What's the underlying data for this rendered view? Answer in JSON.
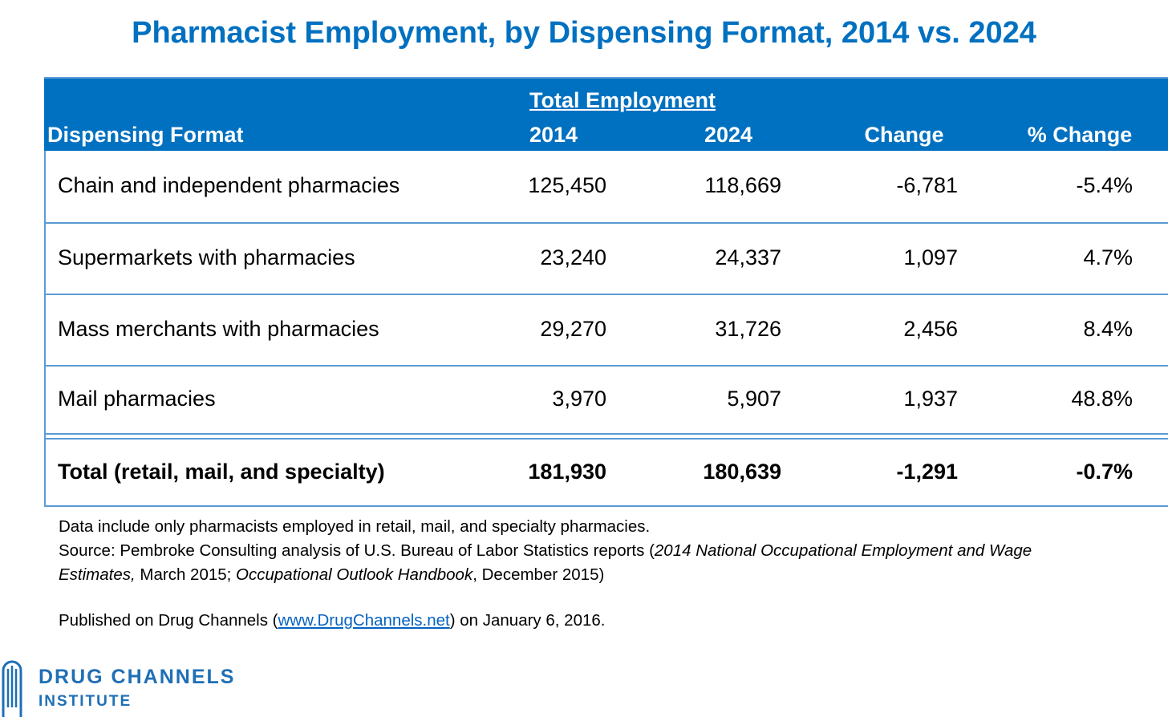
{
  "header": {
    "title": "Pharmacist Employment, by Dispensing Format, 2014 vs. 2024"
  },
  "table": {
    "group_header": "Total Employment",
    "columns": [
      "Dispensing Format",
      "2014",
      "2024",
      "Change",
      "% Change"
    ],
    "rows": [
      [
        "Chain and independent pharmacies",
        "125,450",
        "118,669",
        "-6,781",
        "-5.4%"
      ],
      [
        "Supermarkets with pharmacies",
        "23,240",
        "24,337",
        "1,097",
        "4.7%"
      ],
      [
        "Mass merchants with pharmacies",
        "29,270",
        "31,726",
        "2,456",
        "8.4%"
      ],
      [
        "Mail pharmacies",
        "3,970",
        "5,907",
        "1,937",
        "48.8%"
      ]
    ],
    "total": [
      "Total (retail, mail, and specialty)",
      "181,930",
      "180,639",
      "-1,291",
      "-0.7%"
    ]
  },
  "notes": {
    "line1": "Data include only pharmacists employed in retail, mail, and specialty pharmacies.",
    "source": [
      "Source: Pembroke Consulting analysis of U.S. Bureau of Labor Statistics reports (",
      "2014 National Occupational Employment and Wage Estimates,",
      " March 2015; ",
      "Occupational Outlook Handbook",
      ", December 2015)"
    ],
    "published": [
      "Published on Drug Channels (",
      "www.DrugChannels.net",
      ") on January 6, 2016."
    ]
  },
  "logo": {
    "line1": "DRUG CHANNELS",
    "line2": "INSTITUTE"
  }
}
